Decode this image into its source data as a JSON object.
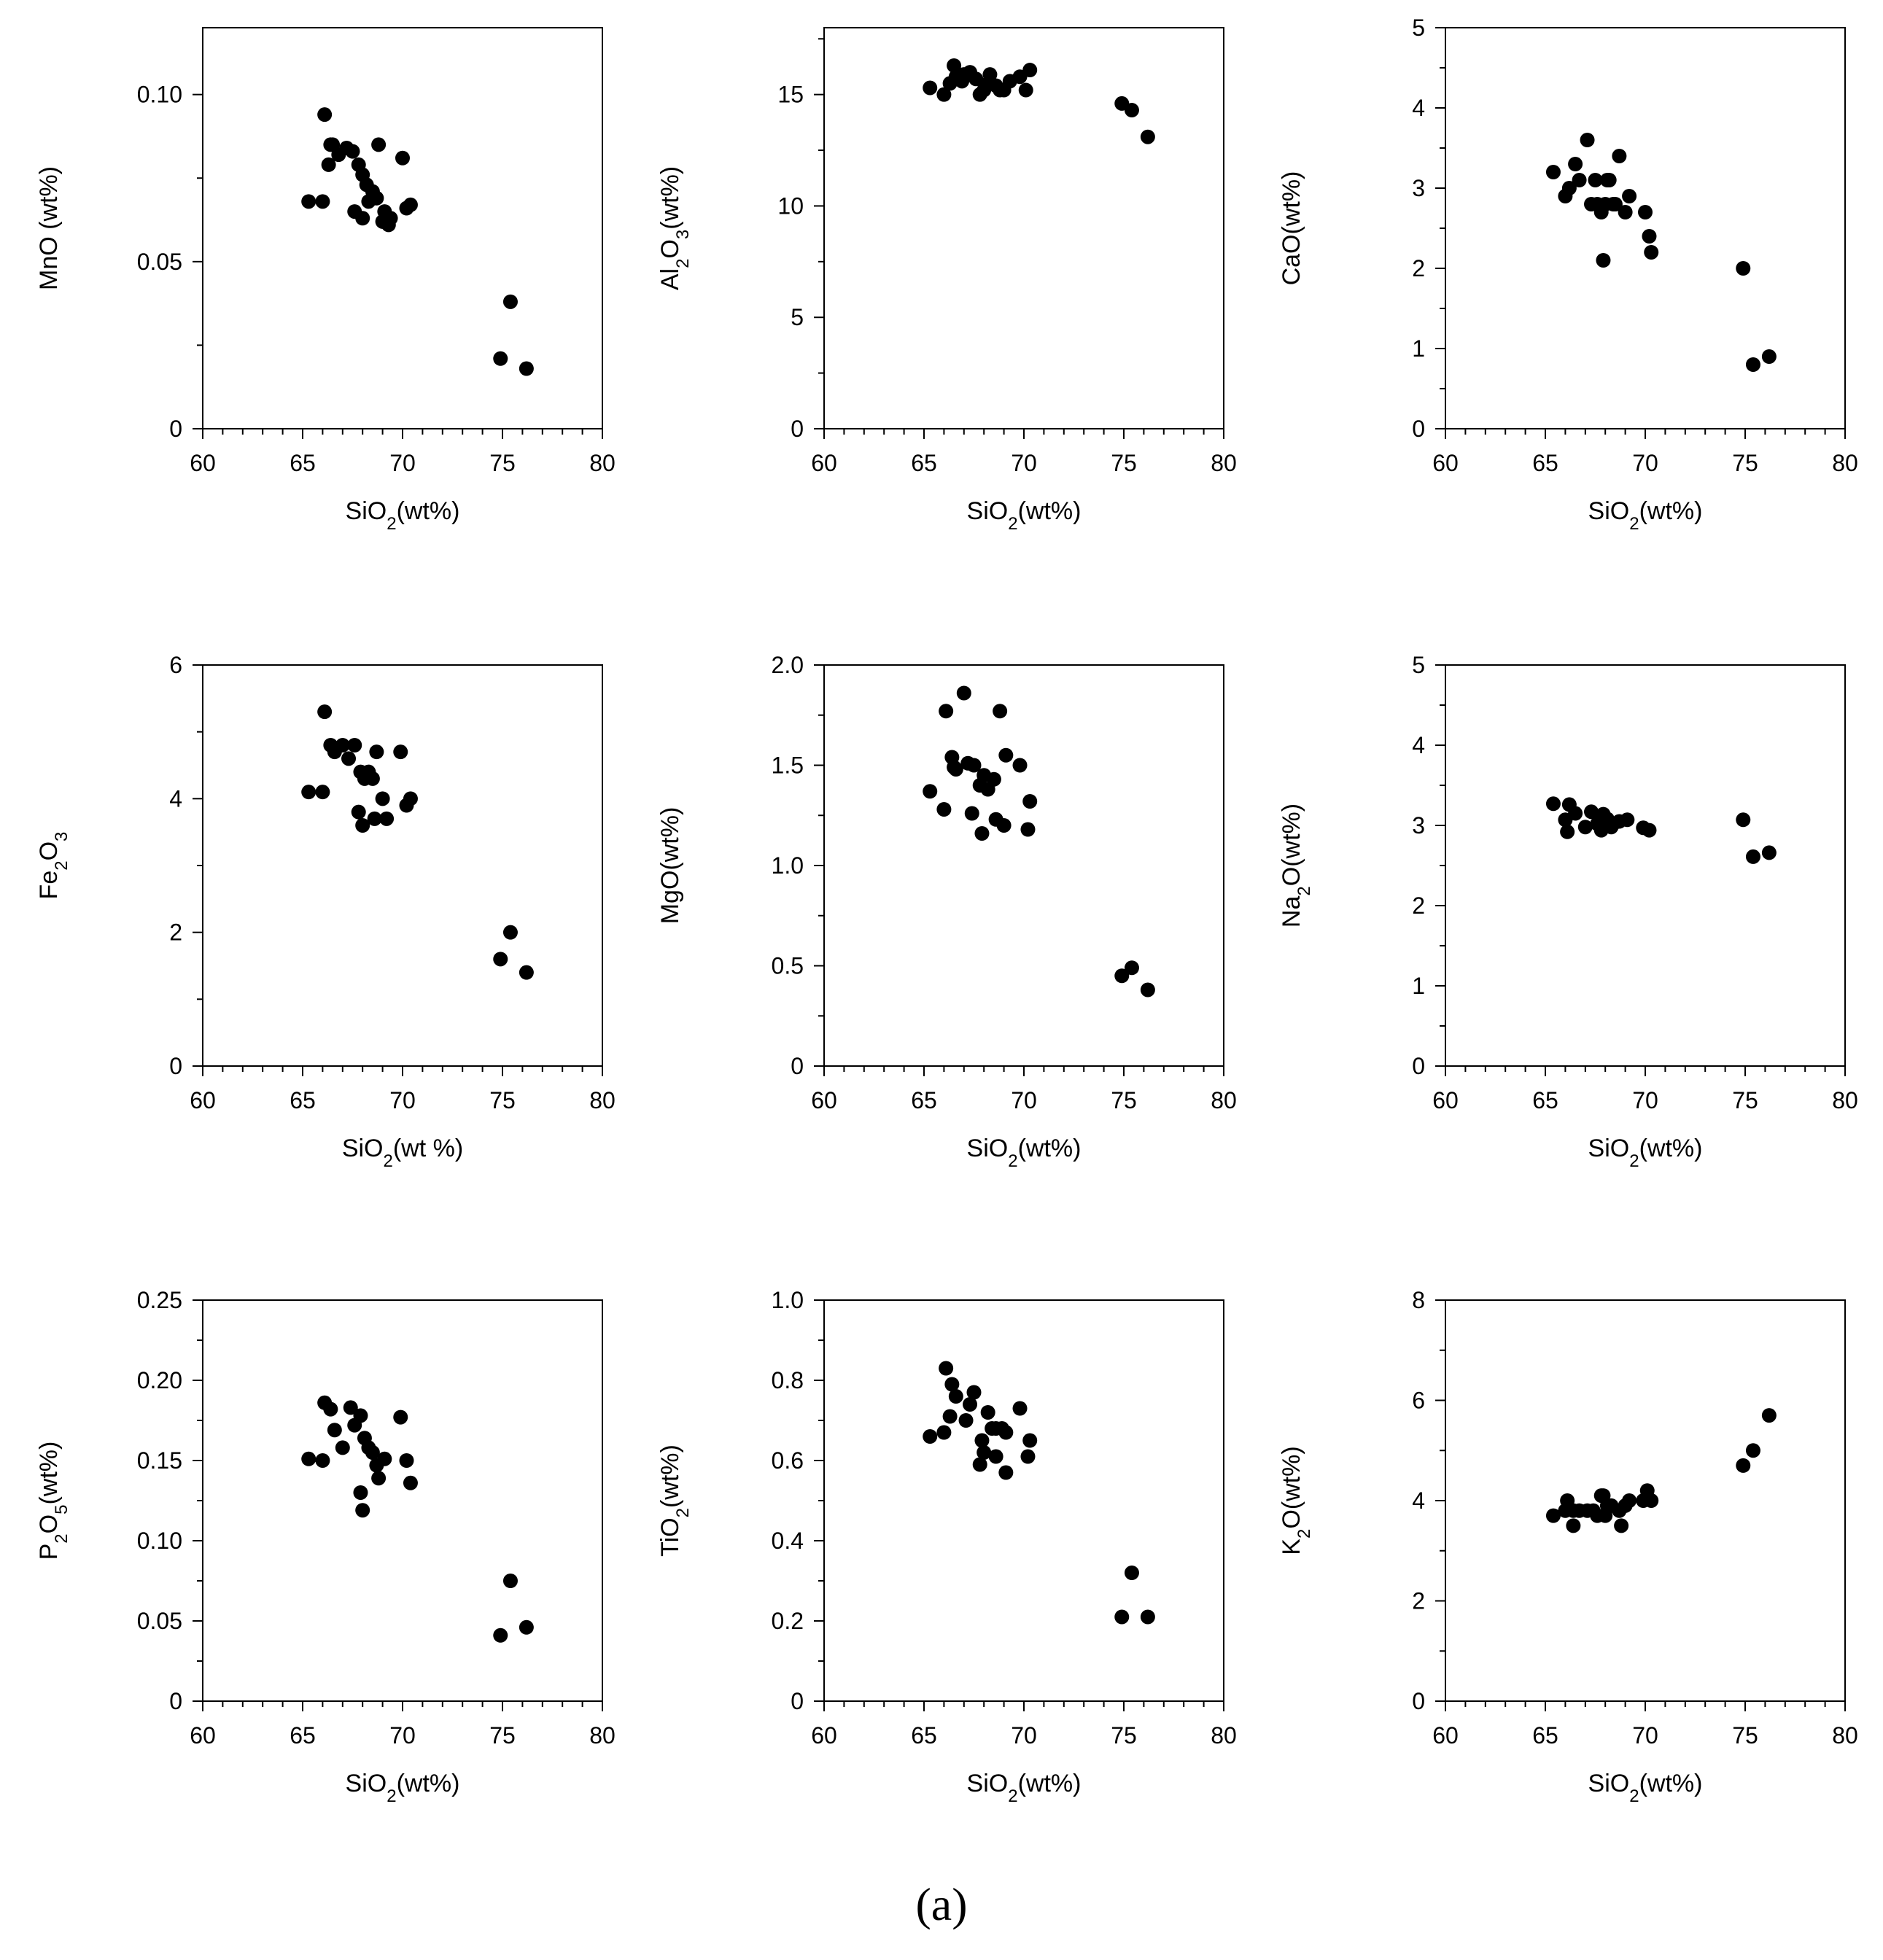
{
  "figure_caption": "(a)",
  "chart_data": [
    {
      "type": "scatter",
      "title": "",
      "xlabel": "SiO2(wt%)",
      "xlabel_parts": [
        "SiO",
        "2",
        "(wt%)"
      ],
      "ylabel": "MnO (wt%)",
      "ylabel_parts": [
        "MnO (wt%)"
      ],
      "xlim": [
        60,
        80
      ],
      "ylim": [
        0,
        0.12
      ],
      "xticks": [
        60,
        65,
        70,
        75,
        80
      ],
      "xtick_labels": [
        "60",
        "65",
        "70",
        "75",
        "80"
      ],
      "yticks": [
        0,
        0.05,
        0.1
      ],
      "ytick_labels": [
        "0",
        "0.05",
        "0.10"
      ],
      "x": [
        66.1,
        66.3,
        66.5,
        66.8,
        67.2,
        67.5,
        67.8,
        68.0,
        68.2,
        68.5,
        68.8,
        69.1,
        69.4,
        70.0,
        70.4,
        65.3,
        66.0,
        66.4,
        67.6,
        68.0,
        68.3,
        68.7,
        69.0,
        69.3,
        70.2,
        74.9,
        75.4,
        76.2
      ],
      "y": [
        0.094,
        0.079,
        0.085,
        0.082,
        0.084,
        0.083,
        0.079,
        0.076,
        0.073,
        0.071,
        0.085,
        0.065,
        0.063,
        0.081,
        0.067,
        0.068,
        0.068,
        0.085,
        0.065,
        0.063,
        0.068,
        0.069,
        0.062,
        0.061,
        0.066,
        0.021,
        0.038,
        0.018
      ]
    },
    {
      "type": "scatter",
      "title": "",
      "xlabel": "SiO2(wt%)",
      "xlabel_parts": [
        "SiO",
        "2",
        "(wt%)"
      ],
      "ylabel": "Al2O3(wt%)",
      "ylabel_parts": [
        "Al",
        "2",
        "O",
        "3",
        "(wt%)"
      ],
      "xlim": [
        60,
        80
      ],
      "ylim": [
        0,
        18
      ],
      "xticks": [
        60,
        65,
        70,
        75,
        80
      ],
      "xtick_labels": [
        "60",
        "65",
        "70",
        "75",
        "80"
      ],
      "yticks": [
        0,
        5,
        10,
        15
      ],
      "ytick_labels": [
        "0",
        "5",
        "10",
        "15"
      ],
      "x": [
        65.3,
        66.0,
        66.3,
        66.6,
        66.9,
        67.3,
        67.6,
        68.0,
        68.3,
        68.6,
        69.0,
        69.3,
        69.8,
        70.3,
        66.5,
        67.0,
        67.8,
        68.2,
        68.8,
        70.1,
        74.9,
        75.4,
        76.2
      ],
      "y": [
        15.3,
        15.0,
        15.5,
        15.8,
        15.6,
        16.0,
        15.7,
        15.2,
        15.9,
        15.4,
        15.2,
        15.6,
        15.8,
        16.1,
        16.3,
        15.9,
        15.0,
        15.5,
        15.2,
        15.2,
        14.6,
        14.3,
        13.1
      ]
    },
    {
      "type": "scatter",
      "title": "",
      "xlabel": "SiO2(wt%)",
      "xlabel_parts": [
        "SiO",
        "2",
        "(wt%)"
      ],
      "ylabel": "CaO(wt%)",
      "ylabel_parts": [
        "CaO(wt%)"
      ],
      "xlim": [
        60,
        80
      ],
      "ylim": [
        0,
        5
      ],
      "xticks": [
        60,
        65,
        70,
        75,
        80
      ],
      "xtick_labels": [
        "60",
        "65",
        "70",
        "75",
        "80"
      ],
      "yticks": [
        0,
        1,
        2,
        3,
        4,
        5
      ],
      "ytick_labels": [
        "0",
        "1",
        "2",
        "3",
        "4",
        "5"
      ],
      "x": [
        65.4,
        66.0,
        66.2,
        66.5,
        67.1,
        67.3,
        67.5,
        67.8,
        68.0,
        68.2,
        68.5,
        68.7,
        69.0,
        69.2,
        70.0,
        70.2,
        70.3,
        66.7,
        67.6,
        68.1,
        67.9,
        68.4,
        74.9,
        75.4,
        76.2
      ],
      "y": [
        3.2,
        2.9,
        3.0,
        3.3,
        3.6,
        2.8,
        3.1,
        2.7,
        2.8,
        3.1,
        2.8,
        3.4,
        2.7,
        2.9,
        2.7,
        2.4,
        2.2,
        3.1,
        2.8,
        3.1,
        2.1,
        2.8,
        2.0,
        0.8,
        0.9
      ]
    },
    {
      "type": "scatter",
      "title": "",
      "xlabel": "SiO2(wt %)",
      "xlabel_parts": [
        "SiO",
        "2",
        "(wt %)"
      ],
      "ylabel": "Fe2O3",
      "ylabel_parts": [
        "Fe",
        "2",
        "O",
        "3"
      ],
      "xlim": [
        60,
        80
      ],
      "ylim": [
        0,
        6
      ],
      "xticks": [
        60,
        65,
        70,
        75,
        80
      ],
      "xtick_labels": [
        "60",
        "65",
        "70",
        "75",
        "80"
      ],
      "yticks": [
        0,
        2,
        4,
        6
      ],
      "ytick_labels": [
        "0",
        "2",
        "4",
        "6"
      ],
      "x": [
        66.1,
        66.4,
        66.6,
        67.0,
        67.3,
        67.6,
        67.9,
        68.1,
        68.3,
        68.5,
        68.7,
        69.0,
        69.9,
        70.2,
        70.4,
        65.3,
        66.0,
        67.8,
        68.0,
        68.6,
        69.2,
        74.9,
        75.4,
        76.2
      ],
      "y": [
        5.3,
        4.8,
        4.7,
        4.8,
        4.6,
        4.8,
        4.4,
        4.3,
        4.4,
        4.3,
        4.7,
        4.0,
        4.7,
        3.9,
        4.0,
        4.1,
        4.1,
        3.8,
        3.6,
        3.7,
        3.7,
        1.6,
        2.0,
        1.4
      ]
    },
    {
      "type": "scatter",
      "title": "",
      "xlabel": "SiO2(wt%)",
      "xlabel_parts": [
        "SiO",
        "2",
        "(wt%)"
      ],
      "ylabel": "MgO(wt%)",
      "ylabel_parts": [
        "MgO(wt%)"
      ],
      "xlim": [
        60,
        80
      ],
      "ylim": [
        0,
        2
      ],
      "xticks": [
        60,
        65,
        70,
        75,
        80
      ],
      "xtick_labels": [
        "60",
        "65",
        "70",
        "75",
        "80"
      ],
      "yticks": [
        0,
        0.5,
        1.0,
        1.5,
        2.0
      ],
      "ytick_labels": [
        "0",
        "0.5",
        "1.0",
        "1.5",
        "2.0"
      ],
      "x": [
        66.1,
        66.4,
        66.6,
        67.0,
        67.2,
        67.5,
        67.8,
        68.0,
        68.2,
        68.5,
        68.8,
        69.1,
        69.8,
        70.2,
        70.3,
        65.3,
        66.0,
        66.5,
        67.4,
        67.9,
        68.6,
        69.0,
        74.9,
        75.4,
        76.2
      ],
      "y": [
        1.77,
        1.54,
        1.48,
        1.86,
        1.51,
        1.5,
        1.4,
        1.45,
        1.38,
        1.43,
        1.77,
        1.55,
        1.5,
        1.18,
        1.32,
        1.37,
        1.28,
        1.49,
        1.26,
        1.16,
        1.23,
        1.2,
        0.45,
        0.49,
        0.38
      ]
    },
    {
      "type": "scatter",
      "title": "",
      "xlabel": "SiO2(wt%)",
      "xlabel_parts": [
        "SiO",
        "2",
        "(wt%)"
      ],
      "ylabel": "Na2O(wt%)",
      "ylabel_parts": [
        "Na",
        "2",
        "O(wt%)"
      ],
      "xlim": [
        60,
        80
      ],
      "ylim": [
        0,
        5
      ],
      "xticks": [
        60,
        65,
        70,
        75,
        80
      ],
      "xtick_labels": [
        "60",
        "65",
        "70",
        "75",
        "80"
      ],
      "yticks": [
        0,
        1,
        2,
        3,
        4,
        5
      ],
      "ytick_labels": [
        "0",
        "1",
        "2",
        "3",
        "4",
        "5"
      ],
      "x": [
        65.4,
        66.0,
        66.2,
        66.5,
        67.0,
        67.3,
        67.6,
        67.9,
        68.1,
        68.4,
        68.7,
        69.1,
        69.9,
        70.2,
        66.1,
        67.8,
        68.3,
        74.9,
        75.4,
        76.2
      ],
      "y": [
        3.27,
        3.07,
        3.26,
        3.15,
        2.98,
        3.17,
        3.02,
        3.14,
        3.08,
        3.02,
        3.05,
        3.07,
        2.97,
        2.94,
        2.92,
        2.94,
        2.98,
        3.07,
        2.61,
        2.66
      ]
    },
    {
      "type": "scatter",
      "title": "",
      "xlabel": "SiO2(wt%)",
      "xlabel_parts": [
        "SiO",
        "2",
        "(wt%)"
      ],
      "ylabel": "P2O5(wt%)",
      "ylabel_parts": [
        "P",
        "2",
        "O",
        "5",
        "(wt%)"
      ],
      "xlim": [
        60,
        80
      ],
      "ylim": [
        0,
        0.25
      ],
      "xticks": [
        60,
        65,
        70,
        75,
        80
      ],
      "xtick_labels": [
        "60",
        "65",
        "70",
        "75",
        "80"
      ],
      "yticks": [
        0,
        0.05,
        0.1,
        0.15,
        0.2,
        0.25
      ],
      "ytick_labels": [
        "0",
        "0.05",
        "0.10",
        "0.15",
        "0.20",
        "0.25"
      ],
      "x": [
        65.3,
        66.0,
        66.1,
        66.4,
        66.6,
        67.0,
        67.4,
        67.6,
        67.9,
        68.1,
        68.3,
        68.5,
        68.8,
        69.1,
        69.9,
        70.2,
        70.4,
        67.9,
        68.0,
        68.7,
        74.9,
        75.4,
        76.2
      ],
      "y": [
        0.151,
        0.15,
        0.186,
        0.182,
        0.169,
        0.158,
        0.183,
        0.172,
        0.178,
        0.164,
        0.158,
        0.155,
        0.139,
        0.151,
        0.177,
        0.15,
        0.136,
        0.13,
        0.119,
        0.147,
        0.041,
        0.075,
        0.046
      ]
    },
    {
      "type": "scatter",
      "title": "",
      "xlabel": "SiO2(wt%)",
      "xlabel_parts": [
        "SiO",
        "2",
        "(wt%)"
      ],
      "ylabel": "TiO2(wt%)",
      "ylabel_parts": [
        "TiO",
        "2",
        "(wt%)"
      ],
      "xlim": [
        60,
        80
      ],
      "ylim": [
        0,
        1.0
      ],
      "xticks": [
        60,
        65,
        70,
        75,
        80
      ],
      "xtick_labels": [
        "60",
        "65",
        "70",
        "75",
        "80"
      ],
      "yticks": [
        0,
        0.2,
        0.4,
        0.6,
        0.8,
        1.0
      ],
      "ytick_labels": [
        "0",
        "0.2",
        "0.4",
        "0.6",
        "0.8",
        "1.0"
      ],
      "x": [
        66.1,
        66.4,
        66.6,
        67.1,
        67.3,
        67.5,
        67.9,
        68.2,
        68.4,
        68.6,
        68.9,
        69.1,
        69.8,
        70.2,
        70.3,
        65.3,
        66.0,
        66.3,
        67.8,
        68.0,
        68.6,
        69.1,
        74.9,
        75.4,
        76.2
      ],
      "y": [
        0.83,
        0.79,
        0.76,
        0.7,
        0.74,
        0.77,
        0.65,
        0.72,
        0.68,
        0.68,
        0.68,
        0.67,
        0.73,
        0.61,
        0.65,
        0.66,
        0.67,
        0.71,
        0.59,
        0.62,
        0.61,
        0.57,
        0.21,
        0.32,
        0.21
      ]
    },
    {
      "type": "scatter",
      "title": "",
      "xlabel": "SiO2(wt%)",
      "xlabel_parts": [
        "SiO",
        "2",
        "(wt%)"
      ],
      "ylabel": "K2O(wt%)",
      "ylabel_parts": [
        "K",
        "2",
        "O(wt%)"
      ],
      "xlim": [
        60,
        80
      ],
      "ylim": [
        0,
        8
      ],
      "xticks": [
        60,
        65,
        70,
        75,
        80
      ],
      "xtick_labels": [
        "60",
        "65",
        "70",
        "75",
        "80"
      ],
      "yticks": [
        0,
        2,
        4,
        6,
        8
      ],
      "ytick_labels": [
        "0",
        "2",
        "4",
        "6",
        "8"
      ],
      "x": [
        65.4,
        66.0,
        66.1,
        66.4,
        66.7,
        67.1,
        67.4,
        67.8,
        67.9,
        68.1,
        68.3,
        68.7,
        69.0,
        69.2,
        69.9,
        70.1,
        70.3,
        66.4,
        67.6,
        68.0,
        68.8,
        74.9,
        75.4,
        76.2
      ],
      "y": [
        3.7,
        3.8,
        4.0,
        3.8,
        3.8,
        3.8,
        3.8,
        4.1,
        4.1,
        3.9,
        3.9,
        3.8,
        3.9,
        4.0,
        4.0,
        4.2,
        4.0,
        3.5,
        3.7,
        3.7,
        3.5,
        4.7,
        5.0,
        5.7
      ]
    }
  ]
}
